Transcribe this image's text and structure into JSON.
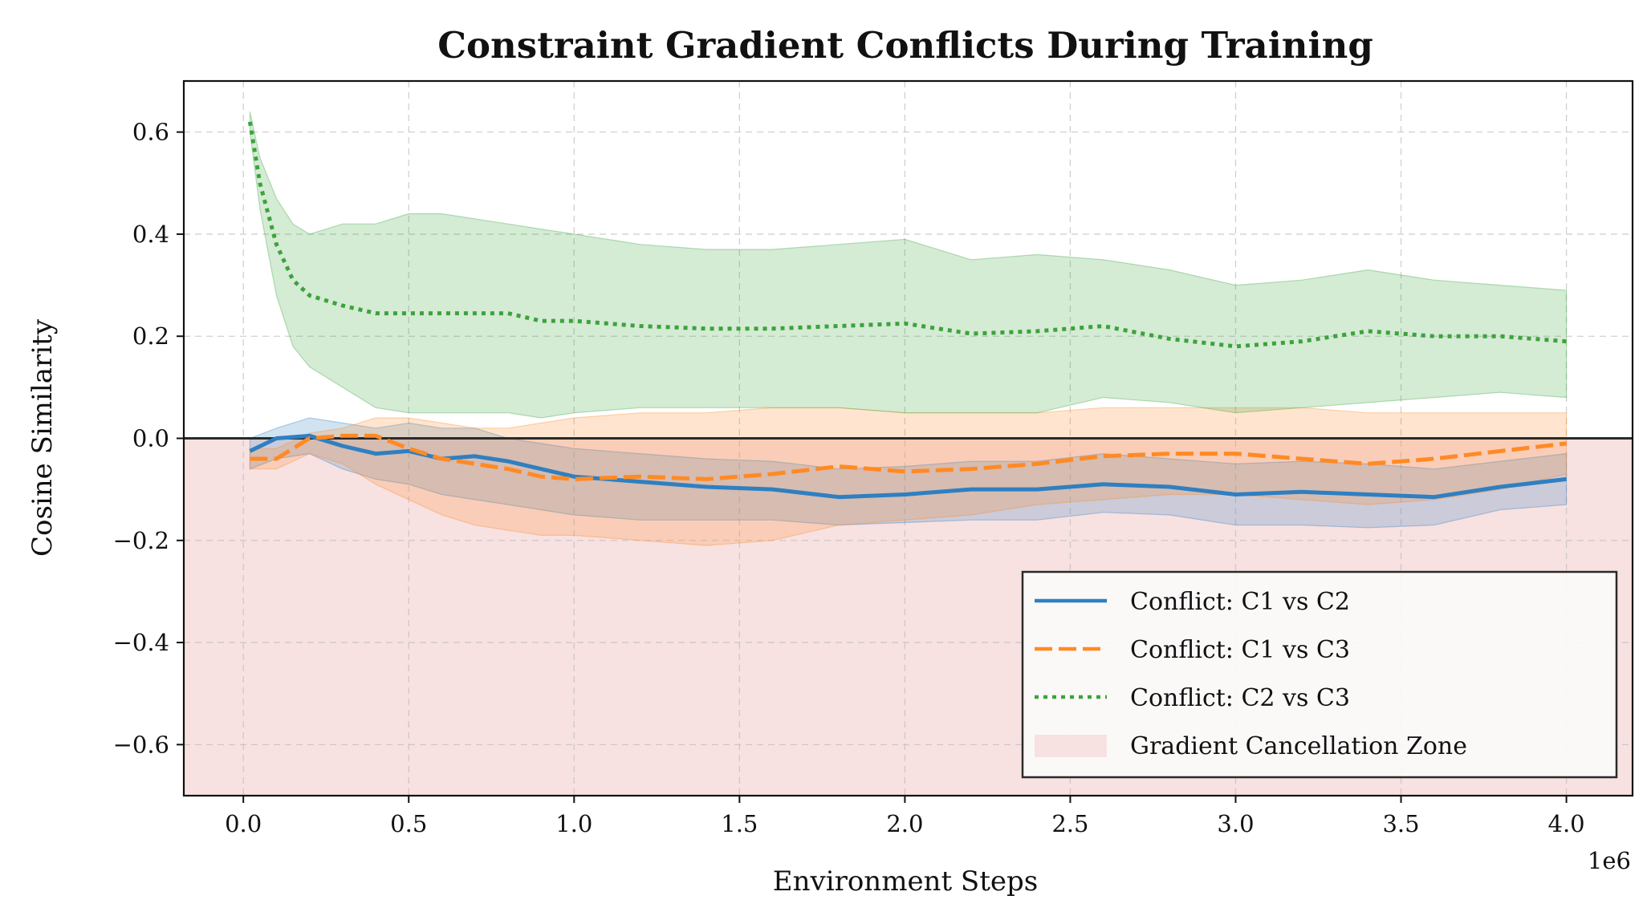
{
  "chart_data": {
    "type": "line",
    "title": "Constraint Gradient Conflicts During Training",
    "xlabel": "Environment Steps",
    "ylabel": "Cosine Similarity",
    "x_offset_label": "1e6",
    "xlim": [
      -0.18,
      4.2
    ],
    "ylim": [
      -0.7,
      0.7
    ],
    "xticks": [
      0.0,
      0.5,
      1.0,
      1.5,
      2.0,
      2.5,
      3.0,
      3.5,
      4.0
    ],
    "xtick_labels": [
      "0.0",
      "0.5",
      "1.0",
      "1.5",
      "2.0",
      "2.5",
      "3.0",
      "3.5",
      "4.0"
    ],
    "yticks": [
      0.6,
      0.4,
      0.2,
      0.0,
      -0.2,
      -0.4,
      -0.6
    ],
    "ytick_labels": [
      "0.6",
      "0.4",
      "0.2",
      "0.0",
      "−0.2",
      "−0.4",
      "−0.6"
    ],
    "grid": true,
    "legend_position": "lower-right",
    "shaded_region": {
      "label": "Gradient Cancellation Zone",
      "y_range": [
        -0.7,
        0.0
      ],
      "color": "#f8e1e1"
    },
    "series": [
      {
        "name": "Conflict: C1 vs C2",
        "color": "#2f7fc1",
        "style": "solid",
        "x": [
          0.02,
          0.1,
          0.2,
          0.3,
          0.4,
          0.5,
          0.6,
          0.7,
          0.8,
          0.9,
          1.0,
          1.2,
          1.4,
          1.6,
          1.8,
          2.0,
          2.2,
          2.4,
          2.6,
          2.8,
          3.0,
          3.2,
          3.4,
          3.6,
          3.8,
          4.0
        ],
        "y": [
          -0.025,
          0.0,
          0.005,
          -0.015,
          -0.03,
          -0.025,
          -0.04,
          -0.035,
          -0.045,
          -0.06,
          -0.075,
          -0.085,
          -0.095,
          -0.1,
          -0.115,
          -0.11,
          -0.1,
          -0.1,
          -0.09,
          -0.095,
          -0.11,
          -0.105,
          -0.11,
          -0.115,
          -0.095,
          -0.08
        ],
        "lower": [
          -0.06,
          -0.04,
          -0.03,
          -0.06,
          -0.08,
          -0.09,
          -0.11,
          -0.12,
          -0.13,
          -0.14,
          -0.15,
          -0.16,
          -0.16,
          -0.16,
          -0.17,
          -0.165,
          -0.16,
          -0.16,
          -0.145,
          -0.15,
          -0.17,
          -0.17,
          -0.175,
          -0.17,
          -0.14,
          -0.13
        ],
        "upper": [
          0.0,
          0.02,
          0.04,
          0.03,
          0.02,
          0.03,
          0.02,
          0.02,
          0.0,
          -0.01,
          -0.02,
          -0.03,
          -0.04,
          -0.045,
          -0.06,
          -0.055,
          -0.045,
          -0.045,
          -0.03,
          -0.04,
          -0.05,
          -0.045,
          -0.05,
          -0.06,
          -0.045,
          -0.03
        ]
      },
      {
        "name": "Conflict: C1 vs C3",
        "color": "#ff8a24",
        "style": "dashed",
        "x": [
          0.02,
          0.1,
          0.2,
          0.3,
          0.4,
          0.5,
          0.6,
          0.7,
          0.8,
          0.9,
          1.0,
          1.2,
          1.4,
          1.6,
          1.8,
          2.0,
          2.2,
          2.4,
          2.6,
          2.8,
          3.0,
          3.2,
          3.4,
          3.6,
          3.8,
          4.0
        ],
        "y": [
          -0.04,
          -0.04,
          0.0,
          0.005,
          0.005,
          -0.02,
          -0.04,
          -0.05,
          -0.06,
          -0.075,
          -0.08,
          -0.075,
          -0.08,
          -0.07,
          -0.055,
          -0.065,
          -0.06,
          -0.05,
          -0.035,
          -0.03,
          -0.03,
          -0.04,
          -0.05,
          -0.04,
          -0.025,
          -0.01
        ],
        "lower": [
          -0.06,
          -0.06,
          -0.03,
          -0.05,
          -0.09,
          -0.12,
          -0.15,
          -0.17,
          -0.18,
          -0.19,
          -0.19,
          -0.2,
          -0.21,
          -0.2,
          -0.17,
          -0.16,
          -0.15,
          -0.13,
          -0.12,
          -0.11,
          -0.11,
          -0.12,
          -0.13,
          -0.12,
          -0.1,
          -0.07
        ],
        "upper": [
          -0.02,
          -0.02,
          0.01,
          0.02,
          0.04,
          0.04,
          0.03,
          0.02,
          0.02,
          0.03,
          0.04,
          0.05,
          0.05,
          0.06,
          0.06,
          0.05,
          0.05,
          0.05,
          0.06,
          0.06,
          0.06,
          0.06,
          0.05,
          0.05,
          0.05,
          0.05
        ]
      },
      {
        "name": "Conflict: C2 vs C3",
        "color": "#3ca33c",
        "style": "dotted",
        "x": [
          0.02,
          0.05,
          0.1,
          0.15,
          0.2,
          0.3,
          0.4,
          0.5,
          0.6,
          0.7,
          0.8,
          0.9,
          1.0,
          1.2,
          1.4,
          1.6,
          1.8,
          2.0,
          2.2,
          2.4,
          2.6,
          2.8,
          3.0,
          3.2,
          3.4,
          3.6,
          3.8,
          4.0
        ],
        "y": [
          0.62,
          0.5,
          0.38,
          0.31,
          0.28,
          0.26,
          0.245,
          0.245,
          0.245,
          0.245,
          0.245,
          0.23,
          0.23,
          0.22,
          0.215,
          0.215,
          0.22,
          0.225,
          0.205,
          0.21,
          0.22,
          0.195,
          0.18,
          0.19,
          0.21,
          0.2,
          0.2,
          0.19
        ],
        "lower": [
          0.6,
          0.45,
          0.28,
          0.18,
          0.14,
          0.1,
          0.06,
          0.05,
          0.05,
          0.05,
          0.05,
          0.04,
          0.05,
          0.06,
          0.06,
          0.06,
          0.06,
          0.05,
          0.05,
          0.05,
          0.08,
          0.07,
          0.05,
          0.06,
          0.07,
          0.08,
          0.09,
          0.08
        ],
        "upper": [
          0.64,
          0.55,
          0.47,
          0.42,
          0.4,
          0.42,
          0.42,
          0.44,
          0.44,
          0.43,
          0.42,
          0.41,
          0.4,
          0.38,
          0.37,
          0.37,
          0.38,
          0.39,
          0.35,
          0.36,
          0.35,
          0.33,
          0.3,
          0.31,
          0.33,
          0.31,
          0.3,
          0.29
        ]
      }
    ]
  }
}
